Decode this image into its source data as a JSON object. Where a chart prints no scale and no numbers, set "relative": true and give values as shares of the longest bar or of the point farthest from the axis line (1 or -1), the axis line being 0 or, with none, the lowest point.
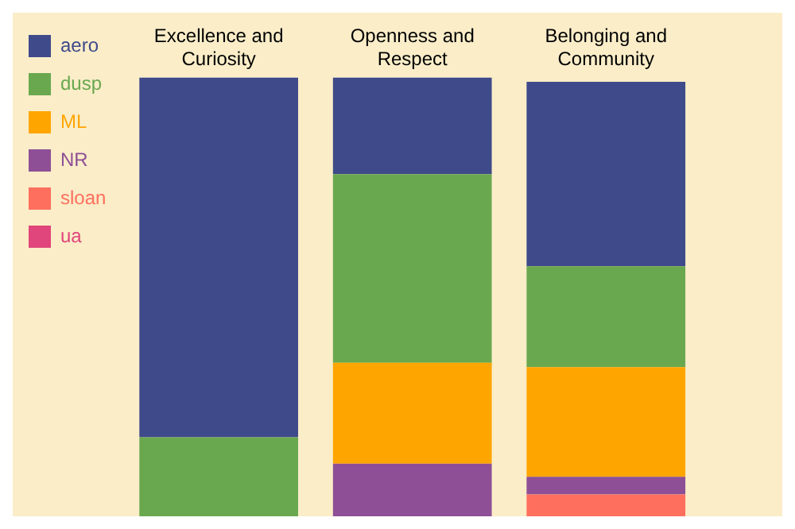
{
  "chart_data": {
    "type": "bar",
    "stacked": true,
    "relative": true,
    "categories": [
      "Excellence and Curiosity",
      "Openness and Respect",
      "Belonging and Community"
    ],
    "series": [
      {
        "name": "ua",
        "color": "#e0457b",
        "values": [
          0,
          0,
          0
        ]
      },
      {
        "name": "sloan",
        "color": "#ff6f5e",
        "values": [
          0,
          0,
          0.05
        ]
      },
      {
        "name": "NR",
        "color": "#8e4f96",
        "values": [
          0,
          0.12,
          0.04
        ]
      },
      {
        "name": "ML",
        "color": "#ffa500",
        "values": [
          0,
          0.23,
          0.25
        ]
      },
      {
        "name": "dusp",
        "color": "#6aa84f",
        "values": [
          0.18,
          0.43,
          0.23
        ]
      },
      {
        "name": "aero",
        "color": "#3f4a8a",
        "values": [
          0.82,
          0.22,
          0.42
        ]
      }
    ],
    "legend": "left",
    "grid": false
  }
}
